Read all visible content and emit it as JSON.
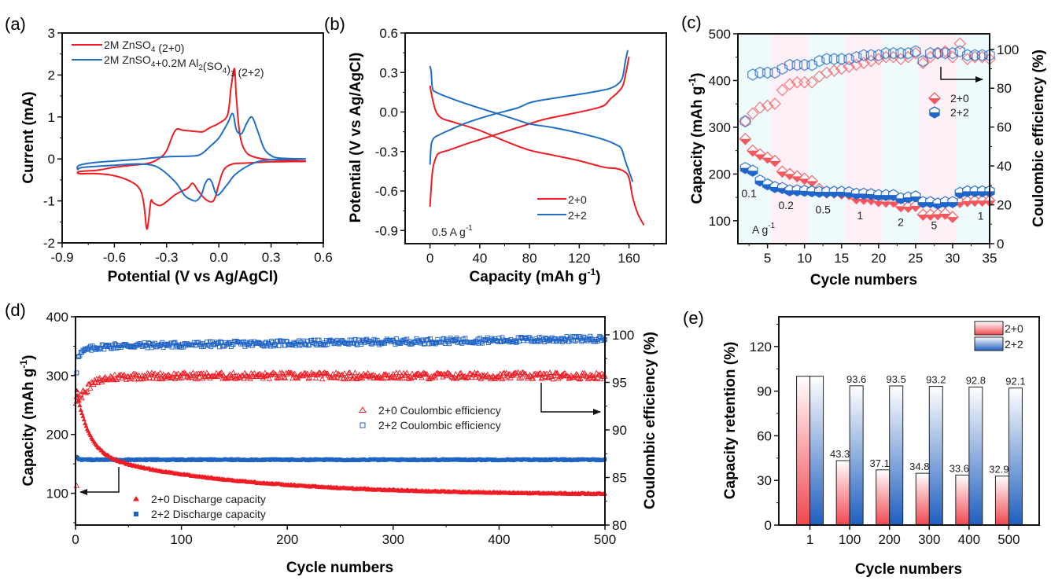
{
  "chart_data": [
    {
      "id": "a",
      "panel_label": "(a)",
      "type": "line",
      "title": "",
      "xlabel": "Potential (V vs Ag/AgCl)",
      "ylabel": "Current (mA)",
      "xlim": [
        -0.9,
        0.6
      ],
      "ylim": [
        -2,
        3
      ],
      "xticks": [
        -0.9,
        -0.6,
        -0.3,
        0.0,
        0.3,
        0.6
      ],
      "xtick_labels": [
        "-0.9",
        "-0.6",
        "-0.3",
        "0.0",
        "0.3",
        "0.6"
      ],
      "yticks": [
        -2,
        -1,
        0,
        1,
        2,
        3
      ],
      "ytick_labels": [
        "-2",
        "-1",
        "0",
        "1",
        "2",
        "3"
      ],
      "grid": false,
      "legend_position": "top-left",
      "series": [
        {
          "name": "2M ZnSO4 (2+0)",
          "legend_main": "2M ZnSO",
          "legend_parts": [
            [
              "2M ZnSO",
              ""
            ],
            [
              "4",
              "sub"
            ],
            [
              " (2+0)",
              ""
            ]
          ],
          "color": "#ee1c24",
          "x": [
            0.5,
            0.3,
            0.2,
            0.15,
            0.12,
            0.1,
            0.09,
            0.07,
            0.05,
            0.0,
            -0.05,
            -0.09,
            -0.12,
            -0.2,
            -0.25,
            -0.3,
            -0.34,
            -0.4,
            -0.5,
            -0.6,
            -0.7,
            -0.8,
            -0.8,
            -0.7,
            -0.6,
            -0.5,
            -0.45,
            -0.43,
            -0.415,
            -0.405,
            -0.39,
            -0.375,
            -0.33,
            -0.25,
            -0.18,
            -0.15,
            -0.12,
            -0.08,
            -0.04,
            -0.02,
            0.0,
            0.03,
            0.08,
            0.15,
            0.3,
            0.5
          ],
          "y": [
            -0.05,
            -0.02,
            0.05,
            0.2,
            0.6,
            1.5,
            2.15,
            1.7,
            1.05,
            0.85,
            0.75,
            0.65,
            0.65,
            0.68,
            0.68,
            0.2,
            0.02,
            -0.1,
            -0.15,
            -0.2,
            -0.27,
            -0.3,
            -0.35,
            -0.35,
            -0.4,
            -0.55,
            -0.75,
            -1.1,
            -1.65,
            -1.5,
            -1.0,
            -1.05,
            -1.1,
            -0.85,
            -0.7,
            -0.58,
            -0.75,
            -0.95,
            -1.02,
            -0.9,
            -0.6,
            -0.25,
            -0.12,
            -0.1,
            -0.07,
            -0.06
          ]
        },
        {
          "name": "2M ZnSO4+0.2M Al2(SO4)3 (2+2)",
          "color": "#1f6fc7",
          "legend_parts": [
            [
              "2M ZnSO",
              ""
            ],
            [
              "4",
              "sub"
            ],
            [
              "+0.2M Al",
              ""
            ],
            [
              "2",
              "sub"
            ],
            [
              "(SO",
              ""
            ],
            [
              "4",
              "sub"
            ],
            [
              ")",
              ""
            ],
            [
              "3",
              "sub"
            ],
            [
              " (2+2)",
              ""
            ]
          ],
          "x": [
            0.5,
            0.35,
            0.3,
            0.26,
            0.22,
            0.19,
            0.16,
            0.13,
            0.1,
            0.08,
            0.05,
            0.0,
            -0.05,
            -0.1,
            -0.15,
            -0.3,
            -0.5,
            -0.7,
            -0.8,
            -0.81,
            -0.78,
            -0.6,
            -0.45,
            -0.35,
            -0.25,
            -0.2,
            -0.17,
            -0.13,
            -0.1,
            -0.08,
            -0.06,
            -0.04,
            -0.02,
            0.0,
            0.05,
            0.1,
            0.2,
            0.3,
            0.5
          ],
          "y": [
            0.0,
            0.02,
            0.08,
            0.25,
            0.7,
            1.0,
            0.85,
            0.6,
            0.7,
            1.08,
            0.85,
            0.5,
            0.3,
            0.12,
            0.07,
            0.05,
            -0.02,
            -0.08,
            -0.15,
            -0.25,
            -0.2,
            -0.15,
            -0.12,
            -0.2,
            -0.55,
            -0.85,
            -0.95,
            -1.0,
            -0.85,
            -0.6,
            -0.48,
            -0.55,
            -0.8,
            -0.85,
            -0.6,
            -0.35,
            -0.1,
            -0.02,
            0.0
          ]
        }
      ]
    },
    {
      "id": "b",
      "panel_label": "(b)",
      "type": "line",
      "xlabel": "Capacity (mAh g",
      "xlabel_sup": "-1",
      "xlabel_end": ")",
      "ylabel": "Potential (V vs Ag/AgCl)",
      "xlim": [
        -20,
        190
      ],
      "ylim": [
        -1.0,
        0.6
      ],
      "xticks": [
        0,
        40,
        80,
        120,
        160
      ],
      "xtick_labels": [
        "0",
        "40",
        "80",
        "120",
        "160"
      ],
      "yticks": [
        -0.9,
        -0.6,
        -0.3,
        0.0,
        0.3,
        0.6
      ],
      "ytick_labels": [
        "-0.9",
        "-0.6",
        "-0.3",
        "0.0",
        "0.3",
        "0.6"
      ],
      "grid": false,
      "legend_position": "bottom-right",
      "annotation": {
        "text": "0.5 A g",
        "sup": "-1"
      },
      "series": [
        {
          "name": "2+0",
          "color": "#ee1c24",
          "segments": [
            {
              "x": [
                0,
                2,
                5,
                8,
                15,
                30,
                50,
                70,
                90,
                110,
                130,
                140,
                145,
                150,
                155,
                158,
                160
              ],
              "y": [
                -0.72,
                -0.45,
                -0.34,
                -0.31,
                -0.29,
                -0.24,
                -0.18,
                -0.12,
                -0.06,
                -0.02,
                0.02,
                0.05,
                0.1,
                0.14,
                0.2,
                0.32,
                0.42
              ]
            },
            {
              "x": [
                0,
                2,
                5,
                10,
                20,
                40,
                60,
                80,
                100,
                120,
                140,
                150,
                156,
                160,
                163,
                167,
                172
              ],
              "y": [
                0.2,
                0.1,
                0.0,
                -0.05,
                -0.08,
                -0.14,
                -0.22,
                -0.29,
                -0.33,
                -0.37,
                -0.42,
                -0.43,
                -0.45,
                -0.5,
                -0.65,
                -0.77,
                -0.86
              ]
            }
          ]
        },
        {
          "name": "2+2",
          "color": "#1f6fc7",
          "segments": [
            {
              "x": [
                0,
                1,
                3,
                6,
                15,
                30,
                50,
                70,
                80,
                90,
                110,
                130,
                145,
                152,
                155,
                157,
                159
              ],
              "y": [
                -0.4,
                -0.25,
                -0.2,
                -0.18,
                -0.14,
                -0.08,
                -0.02,
                0.03,
                0.07,
                0.09,
                0.12,
                0.15,
                0.18,
                0.22,
                0.27,
                0.38,
                0.47
              ]
            },
            {
              "x": [
                0,
                1,
                2,
                5,
                15,
                30,
                50,
                70,
                80,
                100,
                120,
                140,
                150,
                154,
                157,
                160,
                163
              ],
              "y": [
                0.35,
                0.3,
                0.18,
                0.15,
                0.11,
                0.06,
                0.0,
                -0.06,
                -0.09,
                -0.12,
                -0.16,
                -0.21,
                -0.25,
                -0.28,
                -0.37,
                -0.45,
                -0.53
              ]
            }
          ]
        }
      ]
    },
    {
      "id": "c",
      "panel_label": "(c)",
      "type": "scatter",
      "xlabel": "Cycle numbers",
      "ylabel": "Capacity (mAh g",
      "ylabel_sup": "-1",
      "ylabel_end": ")",
      "y2label": "Coulombic efficiency (%)",
      "xlim": [
        1,
        35
      ],
      "ylim": [
        51,
        500
      ],
      "y2lim": [
        0,
        108
      ],
      "xticks": [
        5,
        10,
        15,
        20,
        25,
        30,
        35
      ],
      "xtick_labels": [
        "5",
        "10",
        "15",
        "20",
        "25",
        "30",
        "35"
      ],
      "yticks": [
        100,
        200,
        300,
        400,
        500
      ],
      "ytick_labels": [
        "100",
        "200",
        "300",
        "400",
        "500"
      ],
      "y2ticks": [
        0,
        20,
        40,
        60,
        80,
        100
      ],
      "y2tick_labels": [
        "0",
        "20",
        "40",
        "60",
        "80",
        "100"
      ],
      "grid": false,
      "legend_position": "center-right",
      "rate_bands": [
        {
          "from": 1,
          "to": 5.5,
          "color": "#eefafc",
          "label": "0.1",
          "label_x": 2.5,
          "label_y": 150
        },
        {
          "from": 5.5,
          "to": 10.5,
          "color": "#fdf1f7",
          "label": "0.2",
          "label_x": 7.5,
          "label_y": 125
        },
        {
          "from": 10.5,
          "to": 15.5,
          "color": "#eefafc",
          "label": "0.5",
          "label_x": 12.5,
          "label_y": 116
        },
        {
          "from": 15.5,
          "to": 20.5,
          "color": "#fdf1f7",
          "label": "1",
          "label_x": 17.5,
          "label_y": 103
        },
        {
          "from": 20.5,
          "to": 25.5,
          "color": "#eefafc",
          "label": "2",
          "label_x": 23,
          "label_y": 89
        },
        {
          "from": 25.5,
          "to": 30.5,
          "color": "#fdf1f7",
          "label": "5",
          "label_x": 27.5,
          "label_y": 82
        },
        {
          "from": 30.5,
          "to": 35,
          "color": "#eefafc",
          "label": "1",
          "label_x": 33.8,
          "label_y": 102
        }
      ],
      "unit_label": {
        "text": "A g",
        "sup": "-1"
      },
      "arrow": "points-right-to-CE-axis",
      "series": [
        {
          "name": "2+0",
          "color": "#f2575e",
          "marker": "diamond",
          "x": [
            2,
            3,
            4,
            5,
            6,
            7,
            8,
            9,
            10,
            11,
            12,
            13,
            14,
            15,
            16,
            17,
            18,
            19,
            20,
            21,
            22,
            23,
            24,
            25,
            26,
            27,
            28,
            29,
            30,
            31,
            32,
            33,
            34,
            35
          ],
          "capacity": [
            275,
            250,
            242,
            235,
            228,
            205,
            200,
            195,
            190,
            185,
            168,
            160,
            160,
            158,
            157,
            148,
            147,
            146,
            142,
            141,
            141,
            131,
            130,
            132,
            113,
            113,
            114,
            115,
            108,
            140,
            142,
            143,
            143,
            143
          ],
          "ce": [
            63,
            67,
            70,
            71,
            72,
            79,
            82,
            83,
            83,
            83,
            86,
            88,
            89,
            90,
            91,
            92,
            93,
            94,
            95,
            96,
            96,
            95,
            96,
            98,
            93,
            96,
            98,
            99,
            96,
            103,
            95,
            96,
            96,
            95
          ]
        },
        {
          "name": "2+2",
          "color": "#1e66c9",
          "marker": "hexagon",
          "x": [
            2,
            3,
            4,
            5,
            6,
            7,
            8,
            9,
            10,
            11,
            12,
            13,
            14,
            15,
            16,
            17,
            18,
            19,
            20,
            21,
            22,
            23,
            24,
            25,
            26,
            27,
            28,
            29,
            30,
            31,
            32,
            33,
            34,
            35
          ],
          "capacity": [
            213,
            207,
            186,
            178,
            172,
            170,
            165,
            165,
            164,
            163,
            162,
            162,
            162,
            162,
            161,
            158,
            158,
            157,
            155,
            155,
            155,
            148,
            150,
            152,
            140,
            140,
            137,
            140,
            140,
            160,
            163,
            163,
            163,
            163
          ],
          "ce": [
            63,
            87,
            88,
            88,
            88,
            90,
            92,
            92,
            92,
            92,
            94,
            95,
            95,
            95,
            95,
            96,
            97,
            97,
            97,
            98,
            98,
            98,
            98,
            99,
            94,
            98,
            98,
            98,
            98,
            99,
            97,
            97,
            97,
            97
          ]
        }
      ]
    },
    {
      "id": "d",
      "panel_label": "(d)",
      "type": "scatter",
      "xlabel": "Cycle numbers",
      "ylabel": "Capacity (mAh g",
      "ylabel_sup": "-1",
      "ylabel_end": ")",
      "y2label": "Coulombic efficiency (%)",
      "xlim": [
        0,
        500
      ],
      "ylim": [
        46,
        400
      ],
      "y2lim": [
        80,
        101.9
      ],
      "xticks": [
        0,
        100,
        200,
        300,
        400,
        500
      ],
      "xtick_labels": [
        "0",
        "100",
        "200",
        "300",
        "400",
        "500"
      ],
      "yticks": [
        100,
        200,
        300,
        400
      ],
      "ytick_labels": [
        "100",
        "200",
        "300",
        "400"
      ],
      "y2ticks": [
        80,
        85,
        90,
        95,
        100
      ],
      "y2tick_labels": [
        "80",
        "85",
        "90",
        "95",
        "100"
      ],
      "grid": false,
      "legend_ce_position": "center",
      "legend_cap_position": "bottom-center",
      "series": [
        {
          "name": "2+0 Discharge capacity",
          "color": "#ee1c24",
          "marker": "filled-triangle",
          "axis": "left",
          "model": {
            "start": 275,
            "knee": 160,
            "end": 97,
            "tau_fast": 12,
            "tau_slow": 140
          }
        },
        {
          "name": "2+2 Discharge capacity",
          "color": "#1e62c4",
          "marker": "filled-square",
          "axis": "left",
          "model": {
            "start": 165,
            "plateau": 157
          }
        },
        {
          "name": "2+0 Coulombic efficiency",
          "color": "#ee1c24",
          "marker": "open-triangle",
          "axis": "right",
          "model": {
            "first": 93.8,
            "dip": 93.0,
            "plateau": 95.7,
            "noise": 0.35
          }
        },
        {
          "name": "2+2 Coulombic efficiency",
          "color": "#1e62c4",
          "marker": "open-square",
          "axis": "right",
          "model": {
            "first": 96.0,
            "plateau_start": 98.8,
            "plateau_end": 99.6,
            "noise": 0.3
          }
        }
      ]
    },
    {
      "id": "e",
      "panel_label": "(e)",
      "type": "bar",
      "xlabel": "Cycle numbers",
      "ylabel": "Capacity retention (%)",
      "categories": [
        "1",
        "100",
        "200",
        "300",
        "400",
        "500"
      ],
      "ylim": [
        0,
        140
      ],
      "yticks": [
        0,
        30,
        60,
        90,
        120
      ],
      "ytick_labels": [
        "0",
        "30",
        "60",
        "90",
        "120"
      ],
      "grid": false,
      "legend_position": "top-right",
      "series": [
        {
          "name": "2+0",
          "color": "#f0474f",
          "values": [
            100,
            43.3,
            37.1,
            34.8,
            33.6,
            32.9
          ],
          "labels": [
            "",
            "43.3",
            "37.1",
            "34.8",
            "33.6",
            "32.9"
          ]
        },
        {
          "name": "2+2",
          "color": "#1f5fbf",
          "values": [
            100,
            93.6,
            93.5,
            93.2,
            92.8,
            92.1
          ],
          "labels": [
            "",
            "93.6",
            "93.5",
            "93.2",
            "92.8",
            "92.1"
          ]
        }
      ]
    }
  ]
}
